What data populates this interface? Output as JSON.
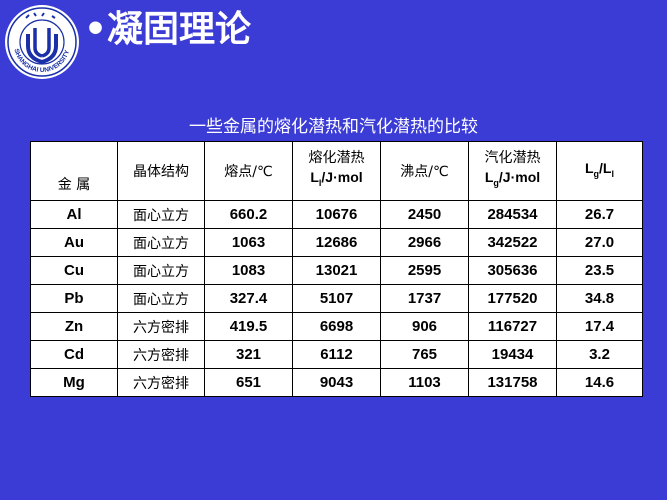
{
  "slide": {
    "title": "•凝固理论",
    "logo_name": "shanghai-university-logo",
    "logo_text": "上海大学 SHANGHAI UNIVERSITY"
  },
  "table": {
    "caption": "一些金属的熔化潜热和汽化潜热的比较",
    "headers": {
      "metal": "金 属",
      "crystal": "晶体结构",
      "melting_point": "熔点/℃",
      "fusion_l1": "熔化潜热",
      "fusion_L": "L",
      "fusion_sub": "l",
      "fusion_unit": "/J·mol",
      "boiling_point": "沸点/℃",
      "vapor_l1": "汽化潜热",
      "vapor_L": "L",
      "vapor_sub": "g",
      "vapor_unit": "/J·mol",
      "ratio_L1": "L",
      "ratio_sub1": "g",
      "ratio_mid": "/L",
      "ratio_sub2": "l"
    },
    "rows": [
      {
        "metal": "Al",
        "crystal": "面心立方",
        "melting": "660.2",
        "fusion": "10676",
        "boiling": "2450",
        "vapor": "284534",
        "ratio": "26.7"
      },
      {
        "metal": "Au",
        "crystal": "面心立方",
        "melting": "1063",
        "fusion": "12686",
        "boiling": "2966",
        "vapor": "342522",
        "ratio": "27.0"
      },
      {
        "metal": "Cu",
        "crystal": "面心立方",
        "melting": "1083",
        "fusion": "13021",
        "boiling": "2595",
        "vapor": "305636",
        "ratio": "23.5"
      },
      {
        "metal": "Pb",
        "crystal": "面心立方",
        "melting": "327.4",
        "fusion": "5107",
        "boiling": "1737",
        "vapor": "177520",
        "ratio": "34.8"
      },
      {
        "metal": "Zn",
        "crystal": "六方密排",
        "melting": "419.5",
        "fusion": "6698",
        "boiling": "906",
        "vapor": "116727",
        "ratio": "17.4"
      },
      {
        "metal": "Cd",
        "crystal": "六方密排",
        "melting": "321",
        "fusion": "6112",
        "boiling": "765",
        "vapor": "19434",
        "ratio": "3.2"
      },
      {
        "metal": "Mg",
        "crystal": "六方密排",
        "melting": "651",
        "fusion": "9043",
        "boiling": "1103",
        "vapor": "131758",
        "ratio": "14.6"
      }
    ]
  },
  "colors": {
    "background": "#3b3bd6",
    "logo_blue": "#1a2fa8",
    "table_bg": "#ffffff"
  }
}
